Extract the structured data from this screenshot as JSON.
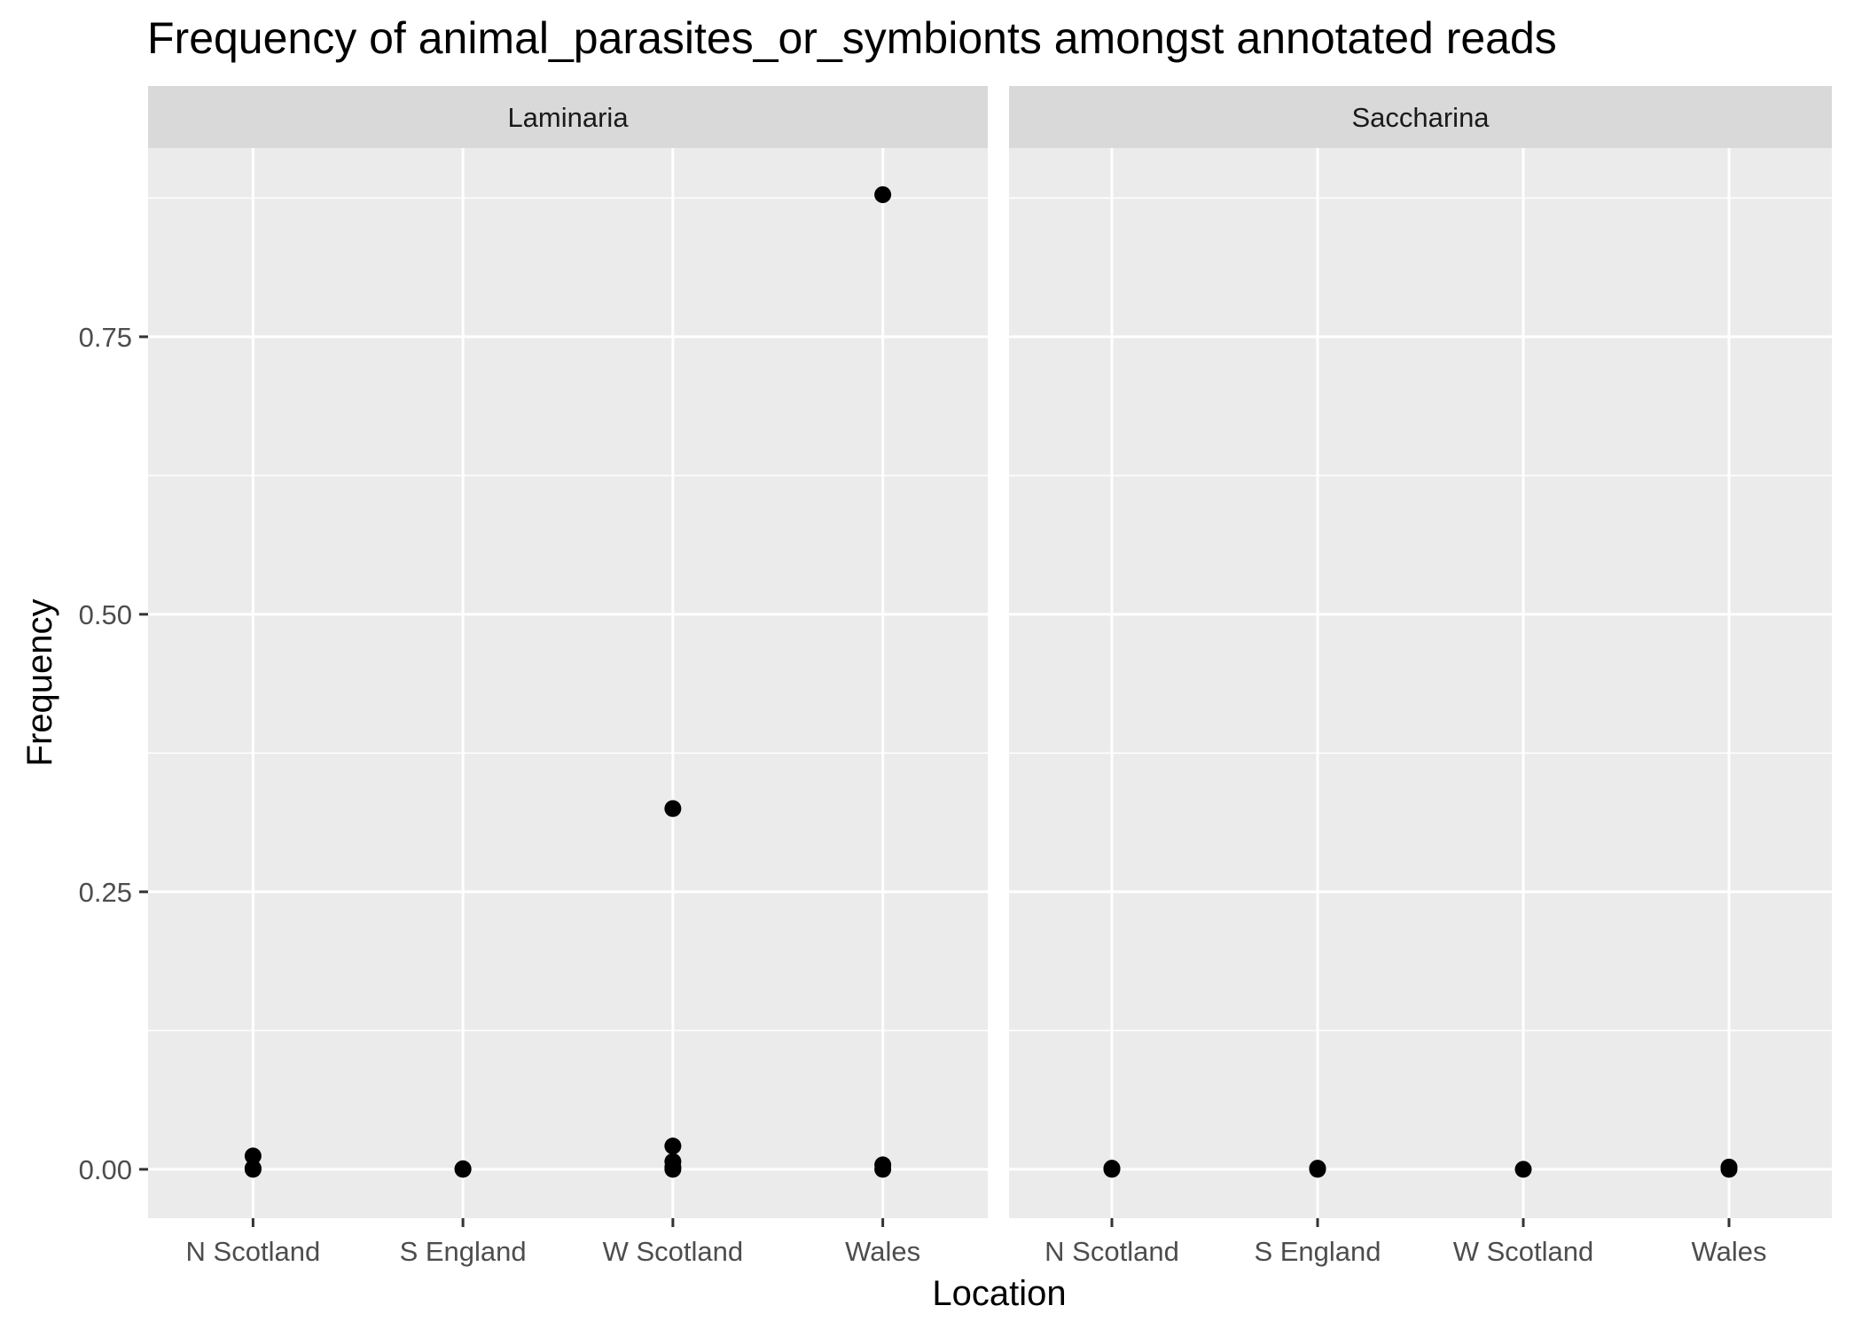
{
  "chart_data": {
    "type": "scatter",
    "title": "Frequency of animal_parasites_or_symbionts amongst annotated reads",
    "xlabel": "Location",
    "ylabel": "Frequency",
    "categories": [
      "N Scotland",
      "S England",
      "W Scotland",
      "Wales"
    ],
    "y_ticks": [
      0.0,
      0.25,
      0.5,
      0.75
    ],
    "y_tick_labels": [
      "0.00",
      "0.25",
      "0.50",
      "0.75"
    ],
    "ylim": [
      -0.044,
      0.92
    ],
    "grid": true,
    "facets": [
      {
        "label": "Laminaria",
        "points": [
          {
            "x": "N Scotland",
            "y": 0.012
          },
          {
            "x": "N Scotland",
            "y": 0.0
          },
          {
            "x": "N Scotland",
            "y": 0.001
          },
          {
            "x": "S England",
            "y": 0.0
          },
          {
            "x": "S England",
            "y": 0.0005
          },
          {
            "x": "W Scotland",
            "y": 0.325
          },
          {
            "x": "W Scotland",
            "y": 0.021
          },
          {
            "x": "W Scotland",
            "y": 0.007
          },
          {
            "x": "W Scotland",
            "y": 0.002
          },
          {
            "x": "W Scotland",
            "y": 0.0
          },
          {
            "x": "Wales",
            "y": 0.878
          },
          {
            "x": "Wales",
            "y": 0.004
          },
          {
            "x": "Wales",
            "y": 0.0
          }
        ]
      },
      {
        "label": "Saccharina",
        "points": [
          {
            "x": "N Scotland",
            "y": 0.0
          },
          {
            "x": "N Scotland",
            "y": 0.001
          },
          {
            "x": "S England",
            "y": 0.0
          },
          {
            "x": "S England",
            "y": 0.001
          },
          {
            "x": "W Scotland",
            "y": 0.0
          },
          {
            "x": "Wales",
            "y": 0.0
          },
          {
            "x": "Wales",
            "y": 0.002
          }
        ]
      }
    ],
    "colors": {
      "panel_background": "#ebebeb",
      "strip_background": "#d9d9d9",
      "grid": "#ffffff",
      "point": "#000000"
    }
  }
}
